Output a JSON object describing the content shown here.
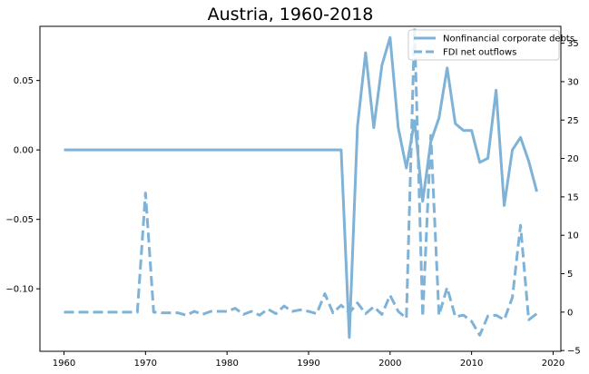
{
  "chart_data": {
    "type": "line",
    "title": "Austria, 1960-2018",
    "xlabel": "",
    "ylabel": "",
    "y2label": "",
    "xlim": [
      1957.05,
      2020.95
    ],
    "ylim": [
      -0.145,
      0.089
    ],
    "y2lim": [
      -5.1,
      37.2
    ],
    "xticks": [
      1960,
      1970,
      1980,
      1990,
      2000,
      2010,
      2020
    ],
    "yticks": [
      -0.1,
      -0.05,
      0.0,
      0.05
    ],
    "ytick_labels": [
      "−0.10",
      "−0.05",
      "0.00",
      "0.05"
    ],
    "y2ticks": [
      -5,
      0,
      5,
      10,
      15,
      20,
      25,
      30,
      35
    ],
    "y2tick_labels": [
      "−5",
      "0",
      "5",
      "10",
      "15",
      "20",
      "25",
      "30",
      "35"
    ],
    "grid": false,
    "legend_position": "top-right",
    "color": "#7fb2d7",
    "series": [
      {
        "name": "Nonfinancial corporate debts",
        "axis": "left",
        "style": "solid",
        "x": [
          1960,
          1961,
          1962,
          1963,
          1964,
          1965,
          1966,
          1967,
          1968,
          1969,
          1970,
          1971,
          1972,
          1973,
          1974,
          1975,
          1976,
          1977,
          1978,
          1979,
          1980,
          1981,
          1982,
          1983,
          1984,
          1985,
          1986,
          1987,
          1988,
          1989,
          1990,
          1991,
          1992,
          1993,
          1994,
          1995,
          1996,
          1997,
          1998,
          1999,
          2000,
          2001,
          2002,
          2003,
          2004,
          2005,
          2006,
          2007,
          2008,
          2009,
          2010,
          2011,
          2012,
          2013,
          2014,
          2015,
          2016,
          2017,
          2018
        ],
        "values": [
          0,
          0,
          0,
          0,
          0,
          0,
          0,
          0,
          0,
          0,
          0,
          0,
          0,
          0,
          0,
          0,
          0,
          0,
          0,
          0,
          0,
          0,
          0,
          0,
          0,
          0,
          0,
          0,
          0,
          0,
          0,
          0,
          0,
          0,
          0,
          -0.135,
          0.017,
          0.07,
          0.016,
          0.061,
          0.081,
          0.016,
          -0.013,
          0.021,
          -0.037,
          0.006,
          0.023,
          0.059,
          0.019,
          0.014,
          0.014,
          -0.009,
          -0.006,
          0.043,
          -0.04,
          0.0,
          0.009,
          -0.008,
          -0.03
        ]
      },
      {
        "name": "FDI net outflows",
        "axis": "right",
        "style": "dashed",
        "x": [
          1960,
          1961,
          1962,
          1963,
          1964,
          1965,
          1966,
          1967,
          1968,
          1969,
          1970,
          1971,
          1972,
          1973,
          1974,
          1975,
          1976,
          1977,
          1978,
          1979,
          1980,
          1981,
          1982,
          1983,
          1984,
          1985,
          1986,
          1987,
          1988,
          1989,
          1990,
          1991,
          1992,
          1993,
          1994,
          1995,
          1996,
          1997,
          1998,
          1999,
          2000,
          2001,
          2002,
          2003,
          2004,
          2005,
          2006,
          2007,
          2008,
          2009,
          2010,
          2011,
          2012,
          2013,
          2014,
          2015,
          2016,
          2017,
          2018
        ],
        "values": [
          0,
          0,
          0,
          0,
          0,
          0,
          0,
          0,
          0,
          0,
          15.5,
          0,
          -0.1,
          -0.1,
          -0.1,
          -0.4,
          0.1,
          -0.3,
          0.1,
          0.1,
          0.1,
          0.5,
          -0.3,
          0.1,
          -0.4,
          0.4,
          -0.2,
          0.8,
          0.1,
          0.3,
          0.1,
          -0.2,
          2.4,
          -0.1,
          0.9,
          -0.1,
          1.2,
          -0.2,
          0.7,
          -0.3,
          2.2,
          0.1,
          -0.8,
          37.0,
          -0.6,
          23.0,
          -0.4,
          3.2,
          -0.6,
          -0.4,
          -1.2,
          -3.0,
          -0.5,
          -0.4,
          -1.0,
          1.9,
          11.3,
          -1.0,
          -0.2
        ]
      }
    ]
  }
}
